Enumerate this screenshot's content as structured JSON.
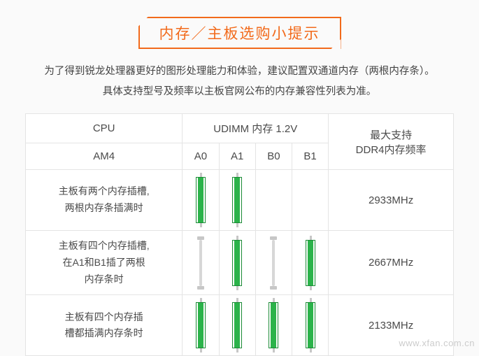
{
  "title": "内存／主板选购小提示",
  "intro_line1": "为了得到锐龙处理器更好的图形处理能力和体验，建议配置双通道内存（两根内存条）。",
  "intro_line2": "具体支持型号及频率以主板官网公布的内存兼容性列表为准。",
  "table": {
    "header": {
      "cpu": "CPU",
      "socket": "AM4",
      "udimm": "UDIMM 内存 1.2V",
      "slots": [
        "A0",
        "A1",
        "B0",
        "B1"
      ],
      "freq_title_l1": "最大支持",
      "freq_title_l2": "DDR4内存频率"
    },
    "rows": [
      {
        "label_l1": "主板有两个内存插槽,",
        "label_l2": "两根内存条插满时",
        "slots": [
          "full",
          "full",
          "none",
          "none"
        ],
        "freq": "2933MHz"
      },
      {
        "label_l1": "主板有四个内存插槽,",
        "label_l2": "在A1和B1插了两根",
        "label_l3": "内存条时",
        "slots": [
          "empty",
          "full",
          "empty",
          "full"
        ],
        "freq": "2667MHz"
      },
      {
        "label_l1": "主板有四个内存插",
        "label_l2": "槽都插满内存条时",
        "slots": [
          "full",
          "full",
          "full",
          "full"
        ],
        "freq": "2133MHz"
      }
    ]
  },
  "watermark": "www.xfan.com.cn",
  "colors": {
    "accent": "#f26a1b",
    "ram_fill": "#2bb34a",
    "border": "#e4e4e4",
    "text": "#444444",
    "bg": "#fafafa"
  }
}
